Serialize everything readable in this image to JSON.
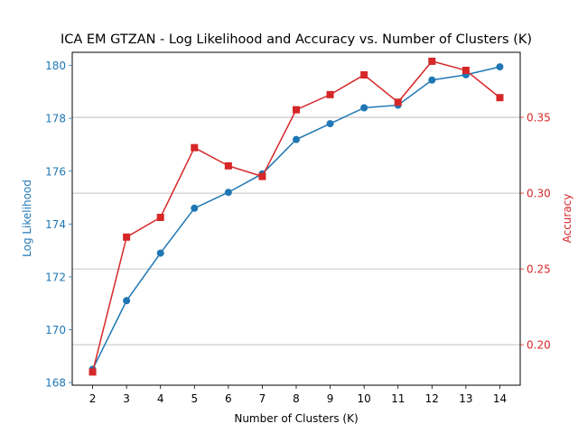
{
  "chart_data": {
    "type": "line",
    "title": "ICA EM GTZAN - Log Likelihood and Accuracy vs. Number of Clusters (K)",
    "xlabel": "Number of Clusters (K)",
    "ylabel_left": "Log Likelihood",
    "ylabel_right": "Accuracy",
    "x": [
      2,
      3,
      4,
      5,
      6,
      7,
      8,
      9,
      10,
      11,
      12,
      13,
      14
    ],
    "ylim_left": [
      167.9,
      180.5
    ],
    "ylim_right": [
      0.1733,
      0.3929
    ],
    "yticks_left": [
      168,
      170,
      172,
      174,
      176,
      178,
      180
    ],
    "yticks_right": [
      "0.20",
      "0.25",
      "0.30",
      "0.35"
    ],
    "yticks_right_values": [
      0.2,
      0.25,
      0.3,
      0.35
    ],
    "grid": "horizontal lines at right-axis ticks",
    "series": [
      {
        "name": "Log Likelihood",
        "axis": "left",
        "marker": "circle",
        "color": "#1f77b4",
        "values": [
          168.5,
          171.1,
          172.9,
          174.6,
          175.2,
          175.9,
          177.2,
          177.8,
          178.4,
          178.5,
          179.45,
          179.65,
          179.95
        ]
      },
      {
        "name": "Accuracy",
        "axis": "right",
        "marker": "square",
        "color": "#d62728",
        "values": [
          0.182,
          0.271,
          0.284,
          0.33,
          0.318,
          0.311,
          0.355,
          0.365,
          0.378,
          0.36,
          0.387,
          0.381,
          0.363
        ]
      }
    ]
  }
}
